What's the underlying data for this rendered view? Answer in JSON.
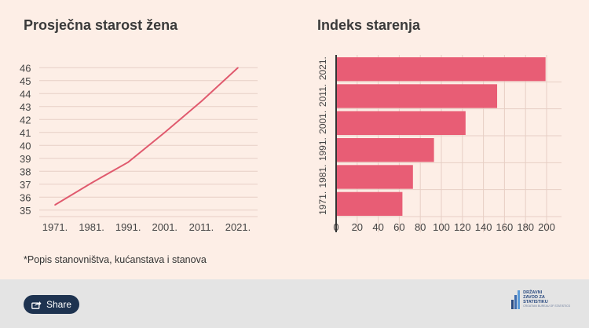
{
  "chart_data": [
    {
      "type": "line",
      "title": "Prosječna starost žena",
      "categories": [
        "1971.",
        "1981.",
        "1991.",
        "2001.",
        "2011.",
        "2021."
      ],
      "series": [
        {
          "values": [
            35.4,
            37.1,
            38.7,
            41.0,
            43.4,
            46.0
          ]
        }
      ],
      "yticks": [
        "35",
        "36",
        "37",
        "38",
        "39",
        "40",
        "41",
        "42",
        "43",
        "44",
        "45",
        "46"
      ],
      "ylim": [
        35,
        46
      ],
      "grid": true,
      "color": "#e05a6e"
    },
    {
      "type": "bar",
      "orientation": "horizontal",
      "title": "Indeks starenja",
      "categories": [
        "1971.",
        "1981.",
        "1991.",
        "2001.",
        "2011.",
        "2021."
      ],
      "values": [
        63,
        73,
        93,
        123,
        153,
        199
      ],
      "xticks": [
        "0",
        "20",
        "40",
        "60",
        "80",
        "100",
        "120",
        "140",
        "160",
        "180",
        "200"
      ],
      "xlim": [
        0,
        210
      ],
      "grid": true,
      "color": "#e85d75"
    }
  ],
  "footnote": "*Popis stanovništva, kućanstava i stanova",
  "footer": {
    "share_label": "Share",
    "share_icon": "share-icon",
    "logo": {
      "lines": [
        "DRŽAVNI",
        "ZAVOD ZA",
        "STATISTIKU"
      ],
      "subline": "CROATIAN BUREAU OF STATISTICS",
      "color": "#2a4a80"
    }
  }
}
